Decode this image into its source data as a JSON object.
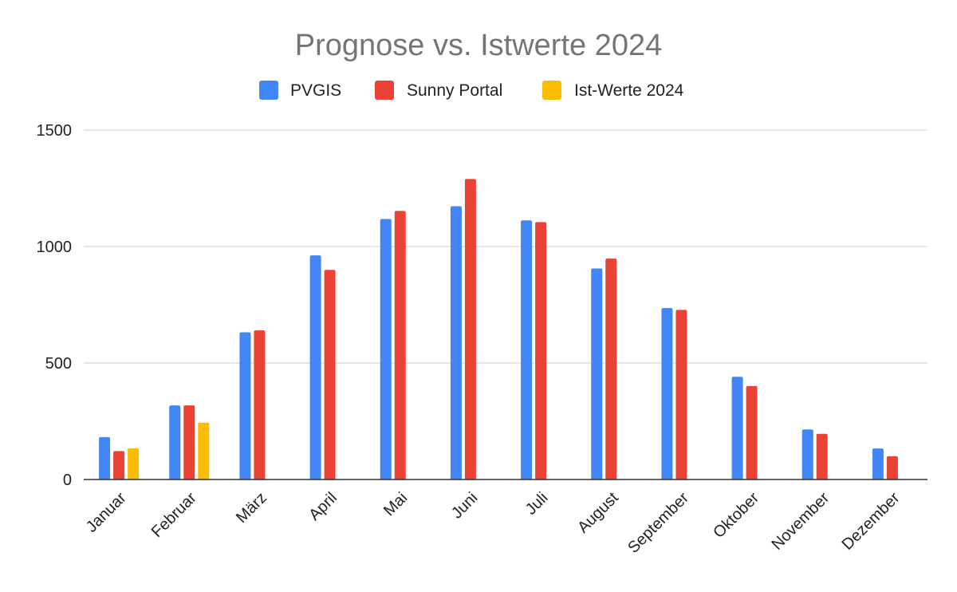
{
  "chart_data": {
    "type": "bar",
    "title": "Prognose vs. Istwerte 2024",
    "xlabel": "",
    "ylabel": "",
    "ylim": [
      0,
      1500
    ],
    "yticks": [
      0,
      500,
      1000,
      1500
    ],
    "grid": true,
    "legend_position": "top",
    "categories": [
      "Januar",
      "Februar",
      "März",
      "April",
      "Mai",
      "Juni",
      "Juli",
      "August",
      "September",
      "Oktober",
      "November",
      "Dezember"
    ],
    "series": [
      {
        "name": "PVGIS",
        "color": "#4285F4",
        "values": [
          182,
          318,
          632,
          962,
          1118,
          1173,
          1112,
          906,
          736,
          441,
          215,
          133
        ]
      },
      {
        "name": "Sunny Portal",
        "color": "#EA4335",
        "values": [
          122,
          318,
          640,
          900,
          1153,
          1290,
          1105,
          948,
          728,
          401,
          196,
          100
        ]
      },
      {
        "name": "Ist-Werte 2024",
        "color": "#FBBC04",
        "values": [
          134,
          244,
          null,
          null,
          null,
          null,
          null,
          null,
          null,
          null,
          null,
          null
        ]
      }
    ]
  }
}
